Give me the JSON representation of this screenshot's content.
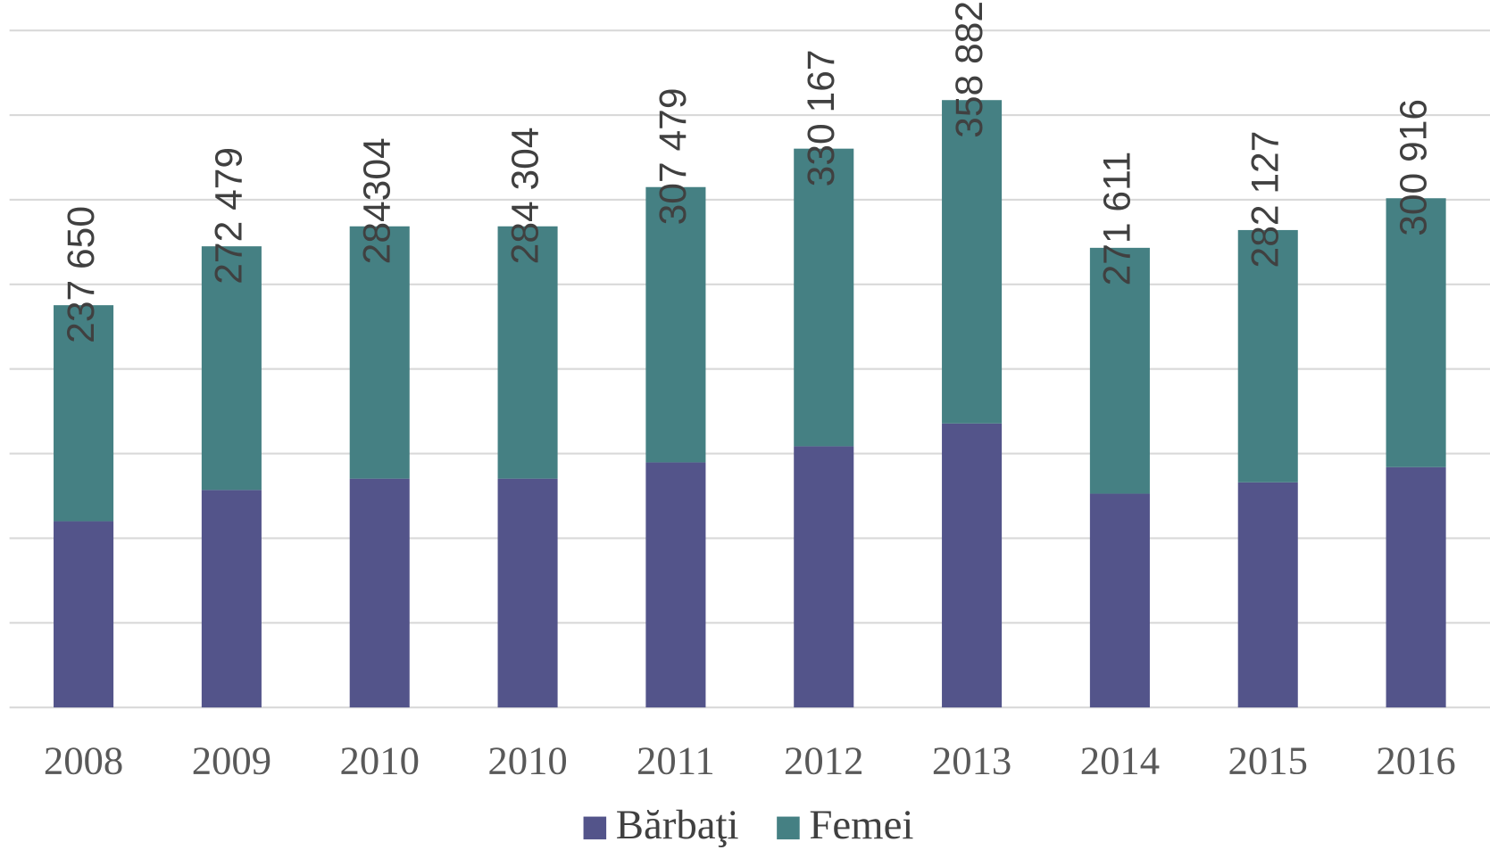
{
  "chart_data": {
    "type": "stacked_bar",
    "categories": [
      "2008",
      "2009",
      "2010",
      "2010",
      "2011",
      "2012",
      "2013",
      "2014",
      "2015",
      "2016"
    ],
    "series": [
      {
        "name": "Bărbaţi",
        "color": "#53548a",
        "values": [
          110000,
          128500,
          135200,
          135200,
          144800,
          154300,
          167800,
          126300,
          133000,
          142000
        ]
      },
      {
        "name": "Femei",
        "color": "#458083",
        "values": [
          127700,
          144000,
          149100,
          149100,
          162700,
          175900,
          191100,
          145300,
          149100,
          158900
        ]
      }
    ],
    "totals": [
      237650,
      272479,
      284304,
      284304,
      307479,
      330167,
      358882,
      271611,
      282127,
      300916
    ],
    "total_labels": [
      "237 650",
      "272 479",
      "284304",
      "284 304",
      "307 479",
      "330 167",
      "358 882",
      "271 611",
      "282 127",
      "300 916"
    ],
    "ylim": [
      0,
      400000
    ],
    "yticks": [
      0,
      50000,
      100000,
      150000,
      200000,
      250000,
      300000,
      350000,
      400000
    ],
    "grid": true,
    "legend": "bottom"
  }
}
